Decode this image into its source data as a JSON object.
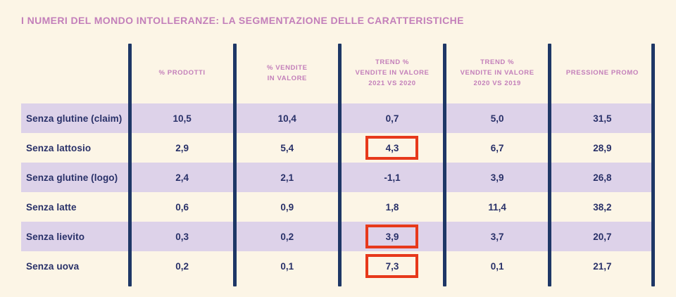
{
  "title": "I NUMERI DEL MONDO INTOLLERANZE: LA SEGMENTAZIONE DELLE CARATTERISTICHE",
  "colors": {
    "background": "#FCF5E6",
    "row_band": "#DDD2E9",
    "text_navy": "#283068",
    "divider_navy": "#1E3766",
    "header_pink": "#C37FBA",
    "highlight_red": "#E7391B"
  },
  "chart_data": {
    "type": "table",
    "title": "I NUMERI DEL MONDO INTOLLERANZE: LA SEGMENTAZIONE DELLE CARATTERISTICHE",
    "columns": [
      "% PRODOTTI",
      "% VENDITE\nIN VALORE",
      "TREND %\nVENDITE IN VALORE\n2021 VS 2020",
      "TREND %\nVENDITE IN VALORE\n2020 VS 2019",
      "PRESSIONE PROMO"
    ],
    "rows": [
      {
        "label": "Senza glutine (claim)",
        "values": [
          "10,5",
          "10,4",
          "0,7",
          "5,0",
          "31,5"
        ],
        "highlighted_columns": []
      },
      {
        "label": "Senza lattosio",
        "values": [
          "2,9",
          "5,4",
          "4,3",
          "6,7",
          "28,9"
        ],
        "highlighted_columns": [
          2
        ]
      },
      {
        "label": "Senza glutine (logo)",
        "values": [
          "2,4",
          "2,1",
          "-1,1",
          "3,9",
          "26,8"
        ],
        "highlighted_columns": []
      },
      {
        "label": "Senza latte",
        "values": [
          "0,6",
          "0,9",
          "1,8",
          "11,4",
          "38,2"
        ],
        "highlighted_columns": []
      },
      {
        "label": "Senza lievito",
        "values": [
          "0,3",
          "0,2",
          "3,9",
          "3,7",
          "20,7"
        ],
        "highlighted_columns": [
          2
        ]
      },
      {
        "label": "Senza uova",
        "values": [
          "0,2",
          "0,1",
          "7,3",
          "0,1",
          "21,7"
        ],
        "highlighted_columns": [
          2
        ]
      }
    ],
    "layout": {
      "grid": "off",
      "row_striping": "alternating, first row shaded",
      "highlight_style": "red rectangle around value"
    }
  }
}
